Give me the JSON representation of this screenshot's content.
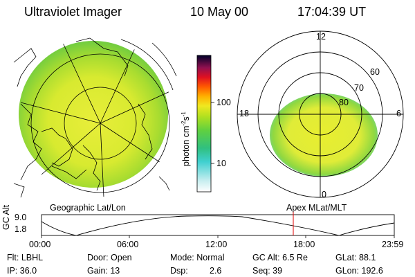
{
  "header": {
    "instrument": "Ultraviolet Imager",
    "date": "10 May 00",
    "time": "17:04:39 UT"
  },
  "colorbar": {
    "unit_label": "photon cm",
    "unit_sup": "-2",
    "unit_mid": "s",
    "unit_sup2": "-1",
    "ticks": [
      "100",
      "10"
    ],
    "scale": "log",
    "colors": [
      "#ffffff",
      "#d0f0f0",
      "#40d0d0",
      "#30c090",
      "#50d040",
      "#a0e020",
      "#e8e820",
      "#ffb000",
      "#ff6000",
      "#e01010",
      "#901040",
      "#400060",
      "#000030"
    ]
  },
  "geo_panel": {
    "label": "Geographic Lat/Lon"
  },
  "mlat_panel": {
    "label": "Apex MLat/MLT",
    "mlt_labels": {
      "top": "12",
      "left": "18",
      "right": "6",
      "bottom": "0"
    },
    "lat_labels": [
      "60",
      "70",
      "80"
    ]
  },
  "gc_alt_plot": {
    "ylabel": "GC Alt",
    "yticks": [
      "9.0",
      "1.8"
    ],
    "xticks": [
      "00:00",
      "06:00",
      "12:00",
      "18:00",
      "23:59"
    ],
    "current_time_marker": "17:04"
  },
  "info": {
    "filter": "Flt: LBHL",
    "ip": "IP: 36.0",
    "door": "Door: Open",
    "gain": "Gain: 13",
    "mode": "Mode: Normal",
    "dsp_label": "Dsp:",
    "dsp_value": "2.6",
    "gc_alt": "GC Alt: 6.5 Re",
    "seq": "Seq: 39",
    "glat": "GLat: 88.1",
    "glon": "GLon: 192.6"
  }
}
